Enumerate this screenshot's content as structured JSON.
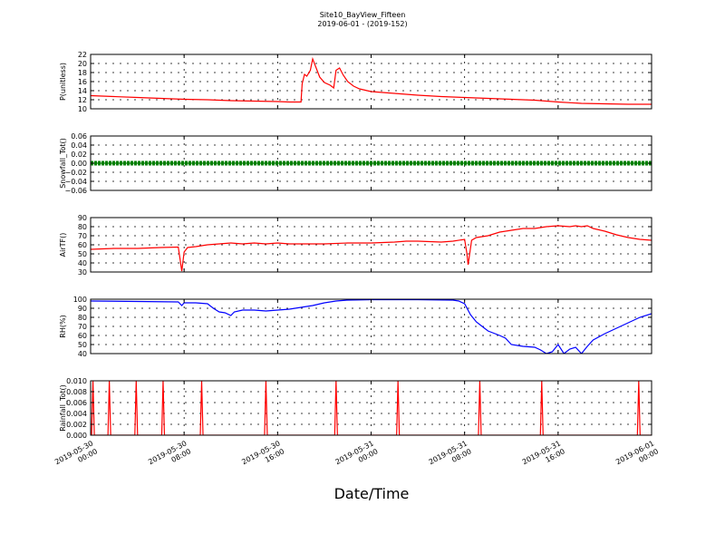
{
  "title": "Site10_BayView_Fifteen",
  "subtitle": "2019-06-01 - (2019-152)",
  "xlabel": "Date/Time",
  "x_ticks": [
    {
      "line1": "2019-05-30",
      "line2": "00:00"
    },
    {
      "line1": "2019-05-30",
      "line2": "08:00"
    },
    {
      "line1": "2019-05-30",
      "line2": "16:00"
    },
    {
      "line1": "2019-05-31",
      "line2": "00:00"
    },
    {
      "line1": "2019-05-31",
      "line2": "08:00"
    },
    {
      "line1": "2019-05-31",
      "line2": "16:00"
    },
    {
      "line1": "2019-06-01",
      "line2": "00:00"
    }
  ],
  "chart_data": [
    {
      "type": "line",
      "ylabel": "P(unitless)",
      "ylim": [
        10,
        22
      ],
      "yticks": [
        "22",
        "20",
        "18",
        "16",
        "14",
        "12",
        "10"
      ],
      "grid": true,
      "series": [
        {
          "color": "#ff0000",
          "points": [
            [
              0,
              12.9
            ],
            [
              2,
              12.7
            ],
            [
              4,
              12.5
            ],
            [
              6,
              12.3
            ],
            [
              8,
              12.1
            ],
            [
              10,
              12.0
            ],
            [
              12,
              11.8
            ],
            [
              14,
              11.7
            ],
            [
              16,
              11.6
            ],
            [
              17,
              11.5
            ],
            [
              18,
              11.5
            ],
            [
              18.1,
              15.5
            ],
            [
              18.3,
              17.6
            ],
            [
              18.5,
              17.2
            ],
            [
              18.8,
              18.5
            ],
            [
              19.0,
              21.0
            ],
            [
              19.3,
              19.0
            ],
            [
              19.6,
              17.0
            ],
            [
              20.0,
              15.8
            ],
            [
              20.5,
              15.2
            ],
            [
              20.8,
              14.6
            ],
            [
              21.0,
              18.5
            ],
            [
              21.3,
              19.0
            ],
            [
              21.6,
              17.5
            ],
            [
              22.0,
              16.0
            ],
            [
              22.5,
              15.0
            ],
            [
              23,
              14.4
            ],
            [
              24,
              13.8
            ],
            [
              26,
              13.4
            ],
            [
              28,
              13.0
            ],
            [
              30,
              12.7
            ],
            [
              32,
              12.5
            ],
            [
              34,
              12.3
            ],
            [
              36,
              12.1
            ],
            [
              38,
              11.9
            ],
            [
              40,
              11.5
            ],
            [
              42,
              11.2
            ],
            [
              44,
              11.1
            ],
            [
              46,
              11.0
            ],
            [
              48,
              11.0
            ]
          ]
        }
      ]
    },
    {
      "type": "line",
      "ylabel": "Snowfall_Tot()",
      "ylim": [
        -0.06,
        0.06
      ],
      "yticks": [
        "0.06",
        "0.04",
        "0.02",
        "0.00",
        "−0.02",
        "−0.04",
        "−0.06"
      ],
      "grid": true,
      "series": [
        {
          "color": "#007f00",
          "marker": "square",
          "points": [
            [
              0,
              0
            ],
            [
              48,
              0
            ]
          ]
        }
      ]
    },
    {
      "type": "line",
      "ylabel": "AirTF()",
      "ylim": [
        30,
        90
      ],
      "yticks": [
        "90",
        "80",
        "70",
        "60",
        "50",
        "40",
        "30"
      ],
      "grid": true,
      "series": [
        {
          "color": "#ff0000",
          "points": [
            [
              0,
              55
            ],
            [
              2,
              56
            ],
            [
              4,
              56
            ],
            [
              6,
              57
            ],
            [
              7.5,
              57.5
            ],
            [
              7.7,
              40
            ],
            [
              7.8,
              31
            ],
            [
              8.0,
              52
            ],
            [
              8.3,
              57
            ],
            [
              9,
              58
            ],
            [
              10,
              60
            ],
            [
              11,
              61
            ],
            [
              12,
              62
            ],
            [
              13,
              61
            ],
            [
              14,
              62
            ],
            [
              15,
              61
            ],
            [
              16,
              62
            ],
            [
              17,
              61
            ],
            [
              18,
              61
            ],
            [
              20,
              61
            ],
            [
              22,
              62
            ],
            [
              24,
              62
            ],
            [
              26,
              63
            ],
            [
              27,
              64
            ],
            [
              28,
              64
            ],
            [
              30,
              63
            ],
            [
              31,
              64
            ],
            [
              32,
              66
            ],
            [
              32.2,
              50
            ],
            [
              32.3,
              38
            ],
            [
              32.6,
              65
            ],
            [
              33,
              68
            ],
            [
              34,
              70
            ],
            [
              35,
              74
            ],
            [
              36,
              76
            ],
            [
              37,
              78
            ],
            [
              38,
              78
            ],
            [
              39,
              80
            ],
            [
              40,
              81
            ],
            [
              41,
              80
            ],
            [
              41.5,
              81
            ],
            [
              42,
              80
            ],
            [
              42.5,
              81
            ],
            [
              43,
              78
            ],
            [
              44,
              75
            ],
            [
              45,
              71
            ],
            [
              46,
              68
            ],
            [
              47,
              66
            ],
            [
              48,
              65
            ]
          ]
        }
      ]
    },
    {
      "type": "line",
      "ylabel": "RH(%)",
      "ylim": [
        40,
        100
      ],
      "yticks": [
        "100",
        "90",
        "80",
        "70",
        "60",
        "50",
        "40"
      ],
      "grid": true,
      "series": [
        {
          "color": "#0000ff",
          "points": [
            [
              0,
              98
            ],
            [
              4,
              97.5
            ],
            [
              7.5,
              97
            ],
            [
              7.8,
              93
            ],
            [
              8.0,
              96
            ],
            [
              9,
              96
            ],
            [
              10,
              95
            ],
            [
              10.5,
              90
            ],
            [
              11,
              86
            ],
            [
              11.5,
              85
            ],
            [
              12,
              82
            ],
            [
              12.3,
              86
            ],
            [
              13,
              88
            ],
            [
              14,
              88
            ],
            [
              15,
              87
            ],
            [
              16,
              88
            ],
            [
              17,
              89
            ],
            [
              18,
              91
            ],
            [
              19,
              93
            ],
            [
              20,
              96
            ],
            [
              21,
              98
            ],
            [
              22,
              99
            ],
            [
              24,
              99.5
            ],
            [
              28,
              99.5
            ],
            [
              31,
              99
            ],
            [
              31.5,
              98
            ],
            [
              32,
              95
            ],
            [
              32.5,
              83
            ],
            [
              33,
              75
            ],
            [
              33.5,
              70
            ],
            [
              34,
              65
            ],
            [
              35,
              60
            ],
            [
              35.5,
              57
            ],
            [
              36,
              50
            ],
            [
              37,
              48
            ],
            [
              38,
              47
            ],
            [
              38.5,
              44
            ],
            [
              39,
              40
            ],
            [
              39.5,
              42
            ],
            [
              40,
              50
            ],
            [
              40.5,
              40
            ],
            [
              41,
              45
            ],
            [
              41.5,
              47
            ],
            [
              42,
              40
            ],
            [
              42.5,
              48
            ],
            [
              43,
              55
            ],
            [
              44,
              62
            ],
            [
              45,
              68
            ],
            [
              46,
              74
            ],
            [
              47,
              80
            ],
            [
              48,
              84
            ],
            [
              49,
              87
            ]
          ]
        }
      ]
    },
    {
      "type": "line",
      "ylabel": "Rainfall_Tot()",
      "ylim": [
        0,
        0.01
      ],
      "yticks": [
        "0.010",
        "0.008",
        "0.006",
        "0.004",
        "0.002",
        "0.000"
      ],
      "grid": true,
      "series": [
        {
          "color": "#ff0000",
          "spikes": [
            0.2,
            1.6,
            3.9,
            6.2,
            9.5,
            15.0,
            21.0,
            26.3,
            33.3,
            38.6,
            46.9
          ],
          "spike_value": 0.01
        }
      ]
    }
  ]
}
